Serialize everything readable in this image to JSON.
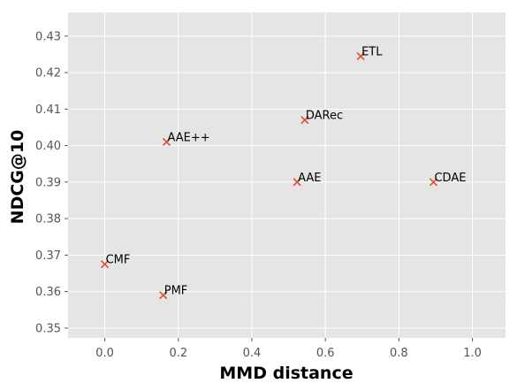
{
  "chart_data": {
    "type": "scatter",
    "title": "",
    "xlabel": "MMD distance",
    "ylabel": "NDCG@10",
    "xlim": [
      -0.1,
      1.09
    ],
    "ylim": [
      0.3473,
      0.4365
    ],
    "xticks": [
      0.0,
      0.2,
      0.4,
      0.6,
      0.8,
      1.0
    ],
    "xtick_labels": [
      "0.0",
      "0.2",
      "0.4",
      "0.6",
      "0.8",
      "1.0"
    ],
    "yticks": [
      0.35,
      0.36,
      0.37,
      0.38,
      0.39,
      0.4,
      0.41,
      0.42,
      0.43
    ],
    "ytick_labels": [
      "0.35",
      "0.36",
      "0.37",
      "0.38",
      "0.39",
      "0.40",
      "0.41",
      "0.42",
      "0.43"
    ],
    "grid": true,
    "marker": "x",
    "marker_color": "#e24a33",
    "background_color": "#e5e5e5",
    "points": [
      {
        "label": "ETL",
        "x": 0.696,
        "y": 0.4245
      },
      {
        "label": "DARec",
        "x": 0.544,
        "y": 0.407
      },
      {
        "label": "AAE++",
        "x": 0.168,
        "y": 0.401
      },
      {
        "label": "AAE",
        "x": 0.523,
        "y": 0.39
      },
      {
        "label": "CDAE",
        "x": 0.894,
        "y": 0.39
      },
      {
        "label": "CMF",
        "x": 0.0,
        "y": 0.3675
      },
      {
        "label": "PMF",
        "x": 0.159,
        "y": 0.359
      }
    ]
  }
}
